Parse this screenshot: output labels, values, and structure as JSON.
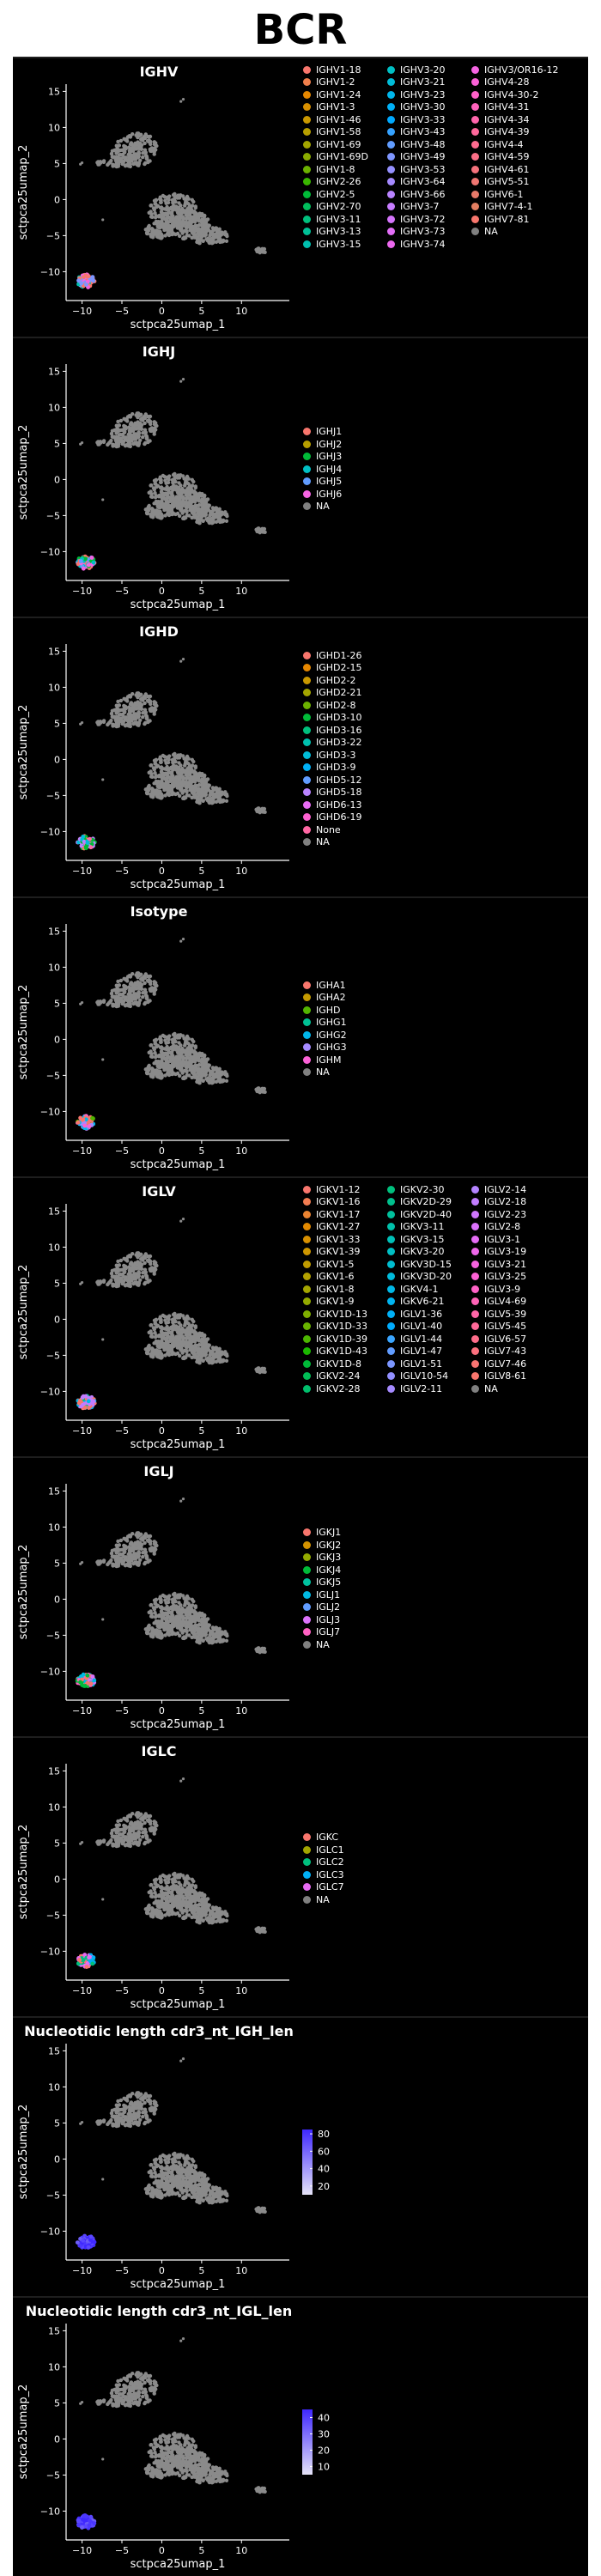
{
  "page": {
    "title": "BCR"
  },
  "colors": {
    "background": "#000000",
    "cells": "#8a8a8a",
    "na": "#808080"
  },
  "chart_data": [
    {
      "type": "scatter",
      "id": "ighv",
      "title": "IGHV",
      "xlabel": "sctpca25umap_1",
      "ylabel": "sctpca25umap_2",
      "xlim": [
        -12,
        16
      ],
      "ylim": [
        -14,
        16
      ],
      "xticks": [
        -10,
        -5,
        0,
        5,
        10
      ],
      "yticks": [
        -10,
        -5,
        0,
        5,
        10,
        15
      ],
      "legend_columns": 3,
      "legend": [
        "IGHV1-18",
        "IGHV1-2",
        "IGHV1-24",
        "IGHV1-3",
        "IGHV1-46",
        "IGHV1-58",
        "IGHV1-69",
        "IGHV1-69D",
        "IGHV1-8",
        "IGHV2-26",
        "IGHV2-5",
        "IGHV2-70",
        "IGHV3-11",
        "IGHV3-13",
        "IGHV3-15",
        "IGHV3-20",
        "IGHV3-21",
        "IGHV3-23",
        "IGHV3-30",
        "IGHV3-33",
        "IGHV3-43",
        "IGHV3-48",
        "IGHV3-49",
        "IGHV3-53",
        "IGHV3-64",
        "IGHV3-66",
        "IGHV3-7",
        "IGHV3-72",
        "IGHV3-73",
        "IGHV3-74",
        "IGHV3/OR16-12",
        "IGHV4-28",
        "IGHV4-30-2",
        "IGHV4-31",
        "IGHV4-34",
        "IGHV4-39",
        "IGHV4-4",
        "IGHV4-59",
        "IGHV4-61",
        "IGHV5-51",
        "IGHV6-1",
        "IGHV7-4-1",
        "IGHV7-81",
        "NA"
      ],
      "palette": [
        "#f8766d",
        "#f07f4c",
        "#e58700",
        "#d89000",
        "#c99800",
        "#b79f00",
        "#a3a500",
        "#8aab00",
        "#6bb100",
        "#39b600",
        "#00ba38",
        "#00bd5c",
        "#00bf7d",
        "#00c097",
        "#00c0af",
        "#00bfc4",
        "#00bcd8",
        "#00b6eb",
        "#00b0f6",
        "#00a9ff",
        "#35a2ff",
        "#619cff",
        "#7f96ff",
        "#9590ff",
        "#a58aff",
        "#b983ff",
        "#c77cff",
        "#d474fb",
        "#e26ef7",
        "#ec68ee",
        "#f564e3",
        "#fb61d7",
        "#ff61c9",
        "#ff62bc",
        "#ff65ac",
        "#ff689b",
        "#ff6c91",
        "#fa6e86",
        "#f5727c",
        "#f07672",
        "#e87a6a",
        "#e27e61",
        "#f8766d",
        "#808080"
      ],
      "highlight": {
        "x": -9.5,
        "y": -11.3
      }
    },
    {
      "type": "scatter",
      "id": "ighj",
      "title": "IGHJ",
      "xlabel": "sctpca25umap_1",
      "ylabel": "sctpca25umap_2",
      "xlim": [
        -12,
        16
      ],
      "ylim": [
        -14,
        16
      ],
      "xticks": [
        -10,
        -5,
        0,
        5,
        10
      ],
      "yticks": [
        -10,
        -5,
        0,
        5,
        10,
        15
      ],
      "legend_columns": 1,
      "legend": [
        "IGHJ1",
        "IGHJ2",
        "IGHJ3",
        "IGHJ4",
        "IGHJ5",
        "IGHJ6",
        "NA"
      ],
      "palette": [
        "#f8766d",
        "#b79f00",
        "#00ba38",
        "#00bfc4",
        "#619cff",
        "#f564e3",
        "#808080"
      ],
      "highlight": {
        "x": -9.5,
        "y": -11.5
      }
    },
    {
      "type": "scatter",
      "id": "ighd",
      "title": "IGHD",
      "xlabel": "sctpca25umap_1",
      "ylabel": "sctpca25umap_2",
      "xlim": [
        -12,
        16
      ],
      "ylim": [
        -14,
        16
      ],
      "xticks": [
        -10,
        -5,
        0,
        5,
        10
      ],
      "yticks": [
        -10,
        -5,
        0,
        5,
        10,
        15
      ],
      "legend_columns": 1,
      "legend": [
        "IGHD1-26",
        "IGHD2-15",
        "IGHD2-2",
        "IGHD2-21",
        "IGHD2-8",
        "IGHD3-10",
        "IGHD3-16",
        "IGHD3-22",
        "IGHD3-3",
        "IGHD3-9",
        "IGHD5-12",
        "IGHD5-18",
        "IGHD6-13",
        "IGHD6-19",
        "None",
        "NA"
      ],
      "palette": [
        "#f8766d",
        "#e58700",
        "#c99800",
        "#a3a500",
        "#6bb100",
        "#00ba38",
        "#00bf7d",
        "#00c0af",
        "#00bcd8",
        "#00b0f6",
        "#619cff",
        "#b983ff",
        "#e76bf3",
        "#fd61d1",
        "#ff67a4",
        "#808080"
      ],
      "highlight": {
        "x": -9.5,
        "y": -11.5
      }
    },
    {
      "type": "scatter",
      "id": "isotype",
      "title": "Isotype",
      "xlabel": "sctpca25umap_1",
      "ylabel": "sctpca25umap_2",
      "xlim": [
        -12,
        16
      ],
      "ylim": [
        -14,
        16
      ],
      "xticks": [
        -10,
        -5,
        0,
        5,
        10
      ],
      "yticks": [
        -10,
        -5,
        0,
        5,
        10,
        15
      ],
      "legend_columns": 1,
      "legend": [
        "IGHA1",
        "IGHA2",
        "IGHD",
        "IGHG1",
        "IGHG2",
        "IGHG3",
        "IGHM",
        "NA"
      ],
      "palette": [
        "#f8766d",
        "#c49a00",
        "#53b400",
        "#00c094",
        "#00b6eb",
        "#a58aff",
        "#fb61d7",
        "#808080"
      ],
      "highlight": {
        "x": -9.5,
        "y": -11.5
      }
    },
    {
      "type": "scatter",
      "id": "iglv",
      "title": "IGLV",
      "xlabel": "sctpca25umap_1",
      "ylabel": "sctpca25umap_2",
      "xlim": [
        -12,
        16
      ],
      "ylim": [
        -14,
        16
      ],
      "xticks": [
        -10,
        -5,
        0,
        5,
        10
      ],
      "yticks": [
        -10,
        -5,
        0,
        5,
        10,
        15
      ],
      "legend_columns": 3,
      "legend": [
        "IGKV1-12",
        "IGKV1-16",
        "IGKV1-17",
        "IGKV1-27",
        "IGKV1-33",
        "IGKV1-39",
        "IGKV1-5",
        "IGKV1-6",
        "IGKV1-8",
        "IGKV1-9",
        "IGKV1D-13",
        "IGKV1D-33",
        "IGKV1D-39",
        "IGKV1D-43",
        "IGKV1D-8",
        "IGKV2-24",
        "IGKV2-28",
        "IGKV2-30",
        "IGKV2D-29",
        "IGKV2D-40",
        "IGKV3-11",
        "IGKV3-15",
        "IGKV3-20",
        "IGKV3D-15",
        "IGKV3D-20",
        "IGKV4-1",
        "IGKV6-21",
        "IGLV1-36",
        "IGLV1-40",
        "IGLV1-44",
        "IGLV1-47",
        "IGLV1-51",
        "IGLV10-54",
        "IGLV2-11",
        "IGLV2-14",
        "IGLV2-18",
        "IGLV2-23",
        "IGLV2-8",
        "IGLV3-1",
        "IGLV3-19",
        "IGLV3-21",
        "IGLV3-25",
        "IGLV3-9",
        "IGLV4-69",
        "IGLV5-39",
        "IGLV5-45",
        "IGLV6-57",
        "IGLV7-43",
        "IGLV7-46",
        "IGLV8-61",
        "NA"
      ],
      "palette": [
        "#f8766d",
        "#f27d52",
        "#ea8331",
        "#e28900",
        "#d89000",
        "#cd9600",
        "#c09b00",
        "#b2a000",
        "#a3a500",
        "#93aa00",
        "#7fae00",
        "#68b200",
        "#4cb500",
        "#1bb800",
        "#00ba38",
        "#00bc56",
        "#00be6c",
        "#00bf7d",
        "#00c08d",
        "#00c09c",
        "#00c0aa",
        "#00c0b8",
        "#00bfc4",
        "#00bdd0",
        "#00bbdc",
        "#00b8e7",
        "#00b4f0",
        "#00b0f6",
        "#00abfd",
        "#3aa5ff",
        "#619cff",
        "#7c96ff",
        "#928fff",
        "#a58aff",
        "#b483ff",
        "#c27dff",
        "#cf77fd",
        "#db72fb",
        "#e56cf5",
        "#ef67ea",
        "#f763e0",
        "#fc61d4",
        "#ff61c6",
        "#ff63b7",
        "#ff66a8",
        "#ff6999",
        "#fd6c8a",
        "#fb707e",
        "#f97472",
        "#f8766d",
        "#808080"
      ],
      "highlight": {
        "x": -9.5,
        "y": -11.5
      }
    },
    {
      "type": "scatter",
      "id": "iglj",
      "title": "IGLJ",
      "xlabel": "sctpca25umap_1",
      "ylabel": "sctpca25umap_2",
      "xlim": [
        -12,
        16
      ],
      "ylim": [
        -14,
        16
      ],
      "xticks": [
        -10,
        -5,
        0,
        5,
        10
      ],
      "yticks": [
        -10,
        -5,
        0,
        5,
        10,
        15
      ],
      "legend_columns": 1,
      "legend": [
        "IGKJ1",
        "IGKJ2",
        "IGKJ3",
        "IGKJ4",
        "IGKJ5",
        "IGLJ1",
        "IGLJ2",
        "IGLJ3",
        "IGLJ7",
        "NA"
      ],
      "palette": [
        "#f8766d",
        "#d39200",
        "#93aa00",
        "#00ba38",
        "#00c19f",
        "#00b9e3",
        "#619cff",
        "#db72fb",
        "#ff61c3",
        "#808080"
      ],
      "highlight": {
        "x": -9.5,
        "y": -11.3
      }
    },
    {
      "type": "scatter",
      "id": "iglc",
      "title": "IGLC",
      "xlabel": "sctpca25umap_1",
      "ylabel": "sctpca25umap_2",
      "xlim": [
        -12,
        16
      ],
      "ylim": [
        -14,
        16
      ],
      "xticks": [
        -10,
        -5,
        0,
        5,
        10
      ],
      "yticks": [
        -10,
        -5,
        0,
        5,
        10,
        15
      ],
      "legend_columns": 1,
      "legend": [
        "IGKC",
        "IGLC1",
        "IGLC2",
        "IGLC3",
        "IGLC7",
        "NA"
      ],
      "palette": [
        "#f8766d",
        "#a3a500",
        "#00bf7d",
        "#00b0f6",
        "#e76bf3",
        "#808080"
      ],
      "highlight": {
        "x": -9.5,
        "y": -11.3
      }
    },
    {
      "type": "scatter",
      "id": "igh_len",
      "title": "Nucleotidic length cdr3_nt_IGH_len",
      "xlabel": "sctpca25umap_1",
      "ylabel": "sctpca25umap_2",
      "xlim": [
        -12,
        16
      ],
      "ylim": [
        -14,
        16
      ],
      "xticks": [
        -10,
        -5,
        0,
        5,
        10
      ],
      "yticks": [
        -10,
        -5,
        0,
        5,
        10,
        15
      ],
      "colorbar": {
        "min": 10,
        "max": 85,
        "ticks": [
          20,
          40,
          60,
          80
        ],
        "low": "#e5e3f7",
        "high": "#3f28ff"
      },
      "highlight": {
        "x": -9.5,
        "y": -11.5
      }
    },
    {
      "type": "scatter",
      "id": "igl_len",
      "title": "Nucleotidic length cdr3_nt_IGL_len",
      "xlabel": "sctpca25umap_1",
      "ylabel": "sctpca25umap_2",
      "xlim": [
        -12,
        16
      ],
      "ylim": [
        -14,
        16
      ],
      "xticks": [
        -10,
        -5,
        0,
        5,
        10
      ],
      "yticks": [
        -10,
        -5,
        0,
        5,
        10,
        15
      ],
      "colorbar": {
        "min": 5,
        "max": 45,
        "ticks": [
          10,
          20,
          30,
          40
        ],
        "low": "#e5e3f7",
        "high": "#3f28ff"
      },
      "highlight": {
        "x": -9.5,
        "y": -11.5
      }
    }
  ]
}
